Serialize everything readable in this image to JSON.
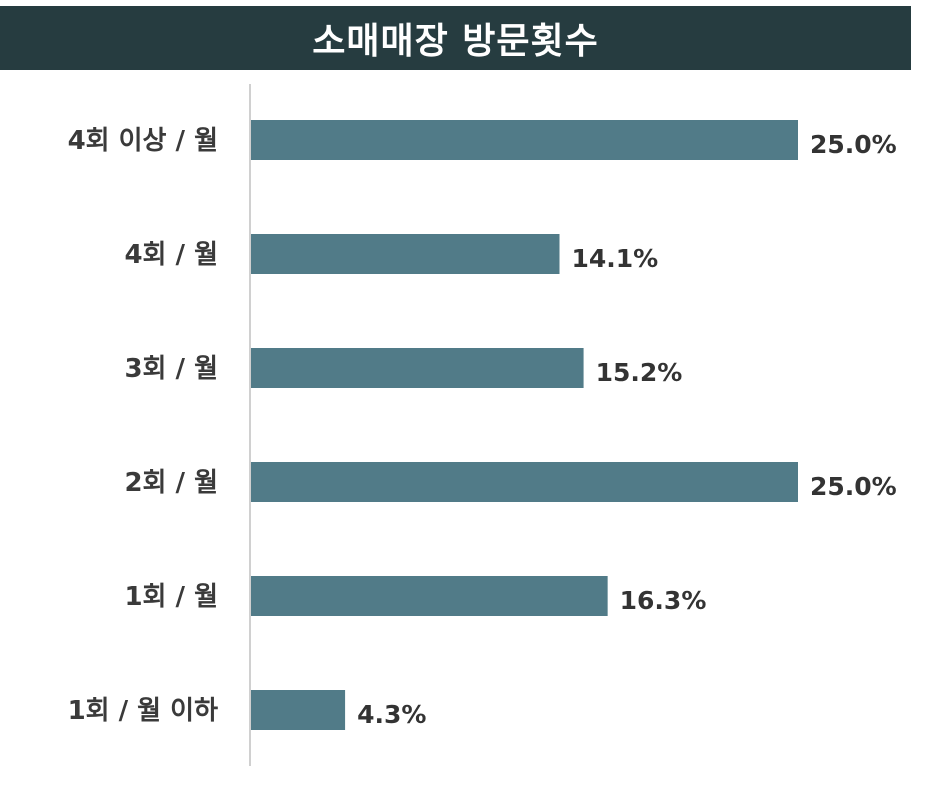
{
  "chart_data": {
    "type": "bar",
    "orientation": "horizontal",
    "title": "소매매장 방문횟수",
    "categories": [
      "4회 이상 / 월",
      "4회 / 월",
      "3회 / 월",
      "2회 / 월",
      "1회 / 월",
      "1회 / 월 이하"
    ],
    "values": [
      25.0,
      14.1,
      15.2,
      25.0,
      16.3,
      4.3
    ],
    "value_labels": [
      "25.0%",
      "14.1%",
      "15.2%",
      "25.0%",
      "16.3%",
      "4.3%"
    ],
    "unit": "%",
    "xlim": [
      0,
      25.0
    ],
    "grid": false,
    "legend": "none",
    "colors": {
      "bar": "#517b88",
      "title_bg": "#263c40",
      "axis": "#d0d0d0"
    }
  }
}
